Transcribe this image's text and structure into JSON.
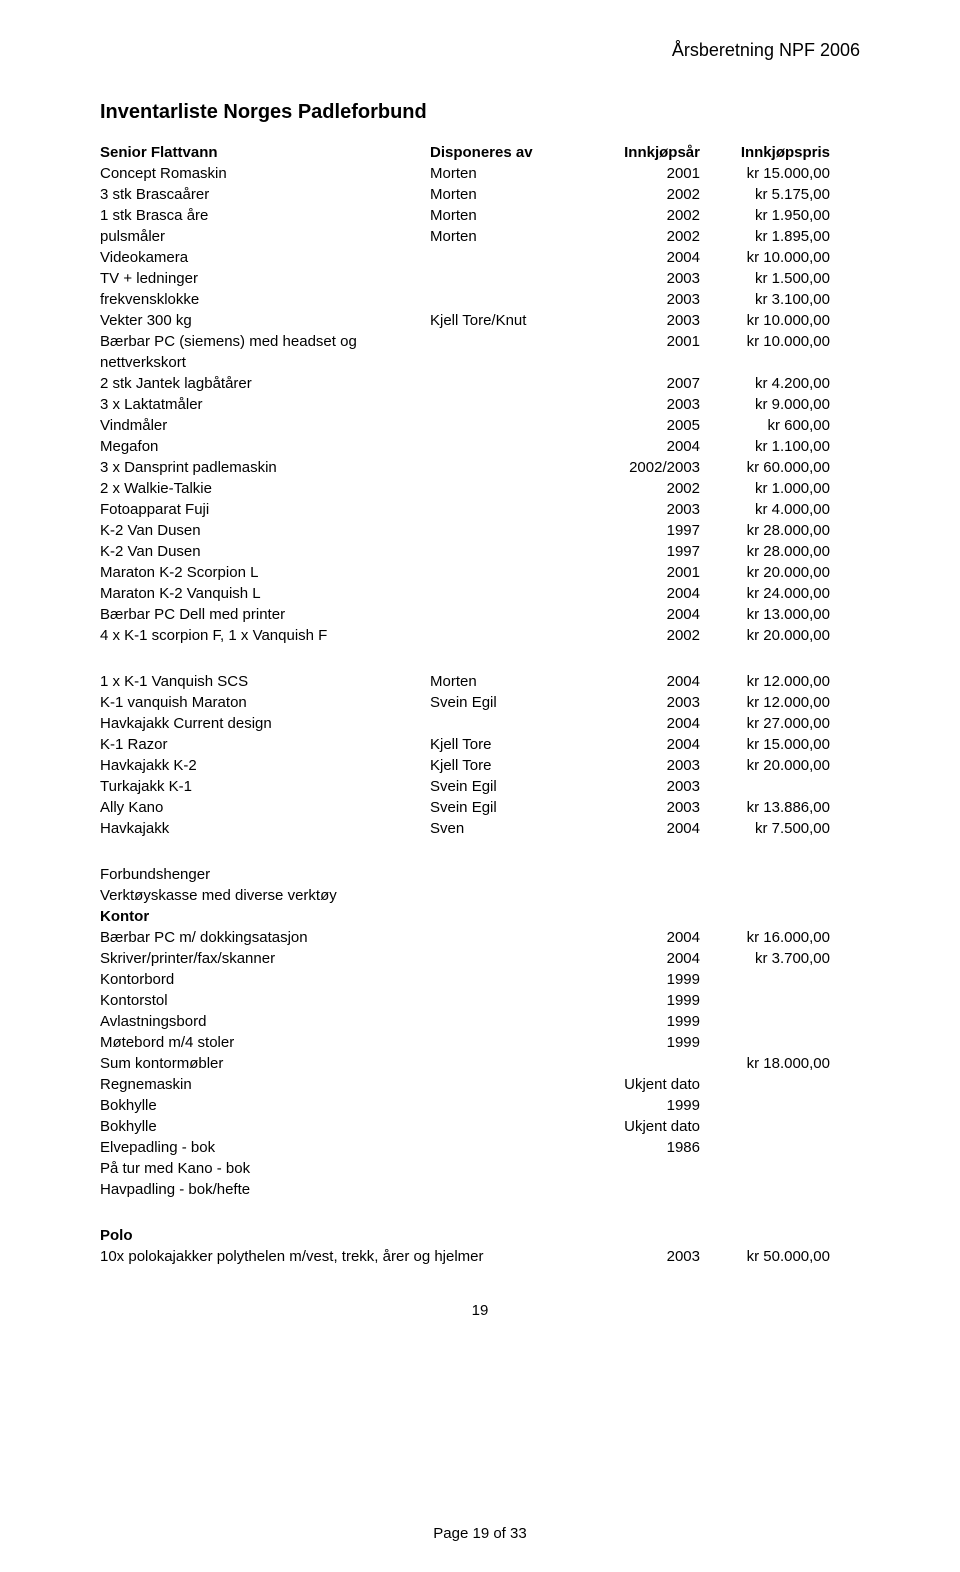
{
  "header": {
    "right": "Årsberetning NPF 2006"
  },
  "title": "Inventarliste Norges Padleforbund",
  "colHeaders": {
    "desc": "Senior Flattvann",
    "disp": "Disponeres av",
    "year": "Innkjøpsår",
    "price": "Innkjøpspris"
  },
  "block1": [
    {
      "desc": "Concept Romaskin",
      "disp": "Morten",
      "year": "2001",
      "price": "kr 15.000,00"
    },
    {
      "desc": "3 stk Brascaårer",
      "disp": "Morten",
      "year": "2002",
      "price": "kr 5.175,00"
    },
    {
      "desc": "1 stk Brasca åre",
      "disp": "Morten",
      "year": "2002",
      "price": "kr 1.950,00"
    },
    {
      "desc": "pulsmåler",
      "disp": "Morten",
      "year": "2002",
      "price": "kr 1.895,00"
    },
    {
      "desc": "Videokamera",
      "disp": "",
      "year": "2004",
      "price": "kr 10.000,00"
    },
    {
      "desc": "TV + ledninger",
      "disp": "",
      "year": "2003",
      "price": "kr 1.500,00"
    },
    {
      "desc": "frekvensklokke",
      "disp": "",
      "year": "2003",
      "price": "kr 3.100,00"
    },
    {
      "desc": "Vekter 300 kg",
      "disp": "Kjell Tore/Knut",
      "year": "2003",
      "price": "kr 10.000,00"
    },
    {
      "desc": "Bærbar PC (siemens) med headset og nettverkskort",
      "disp": "",
      "year": "2001",
      "price": "kr 10.000,00"
    },
    {
      "desc": "2 stk Jantek lagbåtårer",
      "disp": "",
      "year": "2007",
      "price": "kr 4.200,00"
    },
    {
      "desc": "3 x Laktatmåler",
      "disp": "",
      "year": "2003",
      "price": "kr 9.000,00"
    },
    {
      "desc": "Vindmåler",
      "disp": "",
      "year": "2005",
      "price": "kr 600,00"
    },
    {
      "desc": "Megafon",
      "disp": "",
      "year": "2004",
      "price": "kr 1.100,00"
    },
    {
      "desc": "3 x Dansprint padlemaskin",
      "disp": "",
      "year": "2002/2003",
      "price": "kr 60.000,00"
    },
    {
      "desc": "2 x Walkie-Talkie",
      "disp": "",
      "year": "2002",
      "price": "kr 1.000,00"
    },
    {
      "desc": "Fotoapparat Fuji",
      "disp": "",
      "year": "2003",
      "price": "kr 4.000,00"
    },
    {
      "desc": "K-2 Van Dusen",
      "disp": "",
      "year": "1997",
      "price": "kr 28.000,00"
    },
    {
      "desc": "K-2 Van Dusen",
      "disp": "",
      "year": "1997",
      "price": "kr 28.000,00"
    },
    {
      "desc": "Maraton K-2 Scorpion L",
      "disp": "",
      "year": "2001",
      "price": "kr 20.000,00"
    },
    {
      "desc": "Maraton K-2 Vanquish L",
      "disp": "",
      "year": "2004",
      "price": "kr 24.000,00"
    },
    {
      "desc": "Bærbar PC Dell med printer",
      "disp": "",
      "year": "2004",
      "price": "kr 13.000,00"
    },
    {
      "desc": "4 x K-1 scorpion F, 1 x Vanquish F",
      "disp": "",
      "year": "2002",
      "price": "kr 20.000,00"
    }
  ],
  "block2": [
    {
      "desc": "1 x K-1 Vanquish SCS",
      "disp": "Morten",
      "year": "2004",
      "price": "kr 12.000,00"
    },
    {
      "desc": "K-1 vanquish Maraton",
      "disp": "Svein Egil",
      "year": "2003",
      "price": "kr 12.000,00"
    },
    {
      "desc": "Havkajakk Current design",
      "disp": "",
      "year": "2004",
      "price": "kr 27.000,00"
    },
    {
      "desc": "K-1 Razor",
      "disp": "Kjell Tore",
      "year": "2004",
      "price": "kr 15.000,00"
    },
    {
      "desc": "Havkajakk K-2",
      "disp": "Kjell Tore",
      "year": "2003",
      "price": "kr 20.000,00"
    },
    {
      "desc": "Turkajakk K-1",
      "disp": "Svein Egil",
      "year": "2003",
      "price": ""
    },
    {
      "desc": "Ally Kano",
      "disp": "Svein Egil",
      "year": "2003",
      "price": "kr 13.886,00"
    },
    {
      "desc": "Havkajakk",
      "disp": "Sven",
      "year": "2004",
      "price": "kr 7.500,00"
    }
  ],
  "block3pre": [
    "Forbundshenger",
    "Verktøyskasse med diverse verktøy"
  ],
  "kontorLabel": "Kontor",
  "block3": [
    {
      "desc": "Bærbar PC m/ dokkingsatasjon",
      "disp": "",
      "year": "2004",
      "price": "kr 16.000,00"
    },
    {
      "desc": "Skriver/printer/fax/skanner",
      "disp": "",
      "year": "2004",
      "price": "kr 3.700,00"
    },
    {
      "desc": "Kontorbord",
      "disp": "",
      "year": "1999",
      "price": ""
    },
    {
      "desc": "Kontorstol",
      "disp": "",
      "year": "1999",
      "price": ""
    },
    {
      "desc": "Avlastningsbord",
      "disp": "",
      "year": "1999",
      "price": ""
    },
    {
      "desc": "Møtebord m/4 stoler",
      "disp": "",
      "year": "1999",
      "price": ""
    },
    {
      "desc": "Sum kontormøbler",
      "disp": "",
      "year": "",
      "price": "kr 18.000,00"
    },
    {
      "desc": "Regnemaskin",
      "disp": "",
      "year": "Ukjent dato",
      "price": ""
    },
    {
      "desc": "Bokhylle",
      "disp": "",
      "year": "1999",
      "price": ""
    },
    {
      "desc": "Bokhylle",
      "disp": "",
      "year": "Ukjent dato",
      "price": ""
    },
    {
      "desc": "Elvepadling - bok",
      "disp": "",
      "year": "1986",
      "price": ""
    },
    {
      "desc": "På tur med Kano - bok",
      "disp": "",
      "year": "",
      "price": ""
    },
    {
      "desc": "Havpadling - bok/hefte",
      "disp": "",
      "year": "",
      "price": ""
    }
  ],
  "poloLabel": "Polo",
  "polo": [
    {
      "desc": "10x polokajakker polythelen m/vest, trekk, årer og hjelmer",
      "disp": "",
      "year": "2003",
      "price": "kr 50.000,00"
    }
  ],
  "pageNum": "19",
  "footer": "Page 19 of 33"
}
